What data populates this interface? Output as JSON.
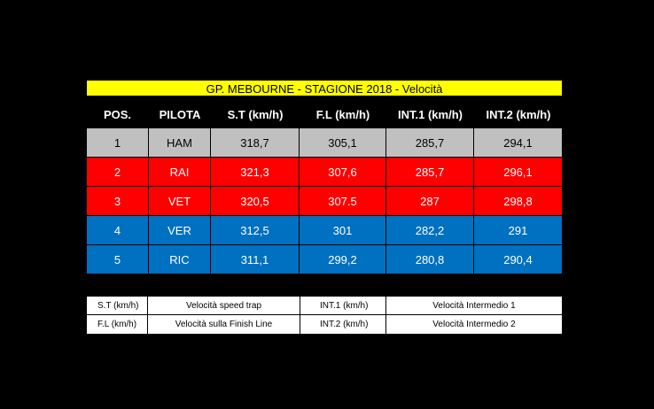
{
  "title": "GP. MEBOURNE - STAGIONE 2018 - Velocità",
  "columns": [
    "POS.",
    "PILOTA",
    "S.T (km/h)",
    "F.L (km/h)",
    "INT.1 (km/h)",
    "INT.2 (km/h)"
  ],
  "rows": [
    {
      "pos": "1",
      "driver": "HAM",
      "st": "318,7",
      "fl": "305,1",
      "int1": "285,7",
      "int2": "294,1",
      "color": "#c0c0c0"
    },
    {
      "pos": "2",
      "driver": "RAI",
      "st": "321,3",
      "fl": "307,6",
      "int1": "285,7",
      "int2": "296,1",
      "color": "#ff0000"
    },
    {
      "pos": "3",
      "driver": "VET",
      "st": "320,5",
      "fl": "307.5",
      "int1": "287",
      "int2": "298,8",
      "color": "#ff0000"
    },
    {
      "pos": "4",
      "driver": "VER",
      "st": "312,5",
      "fl": "301",
      "int1": "282,2",
      "int2": "291",
      "color": "#0070c0"
    },
    {
      "pos": "5",
      "driver": "RIC",
      "st": "311,1",
      "fl": "299,2",
      "int1": "280,8",
      "int2": "290,4",
      "color": "#0070c0"
    }
  ],
  "legend": [
    {
      "abbr1": "S.T (km/h)",
      "desc1": "Velocità speed trap",
      "abbr2": "INT.1 (km/h)",
      "desc2": "Velocità Intermedio 1"
    },
    {
      "abbr1": "F.L (km/h)",
      "desc1": "Velocità sulla Finish Line",
      "abbr2": "INT.2 (km/h)",
      "desc2": "Velocità Intermedio 2"
    }
  ]
}
